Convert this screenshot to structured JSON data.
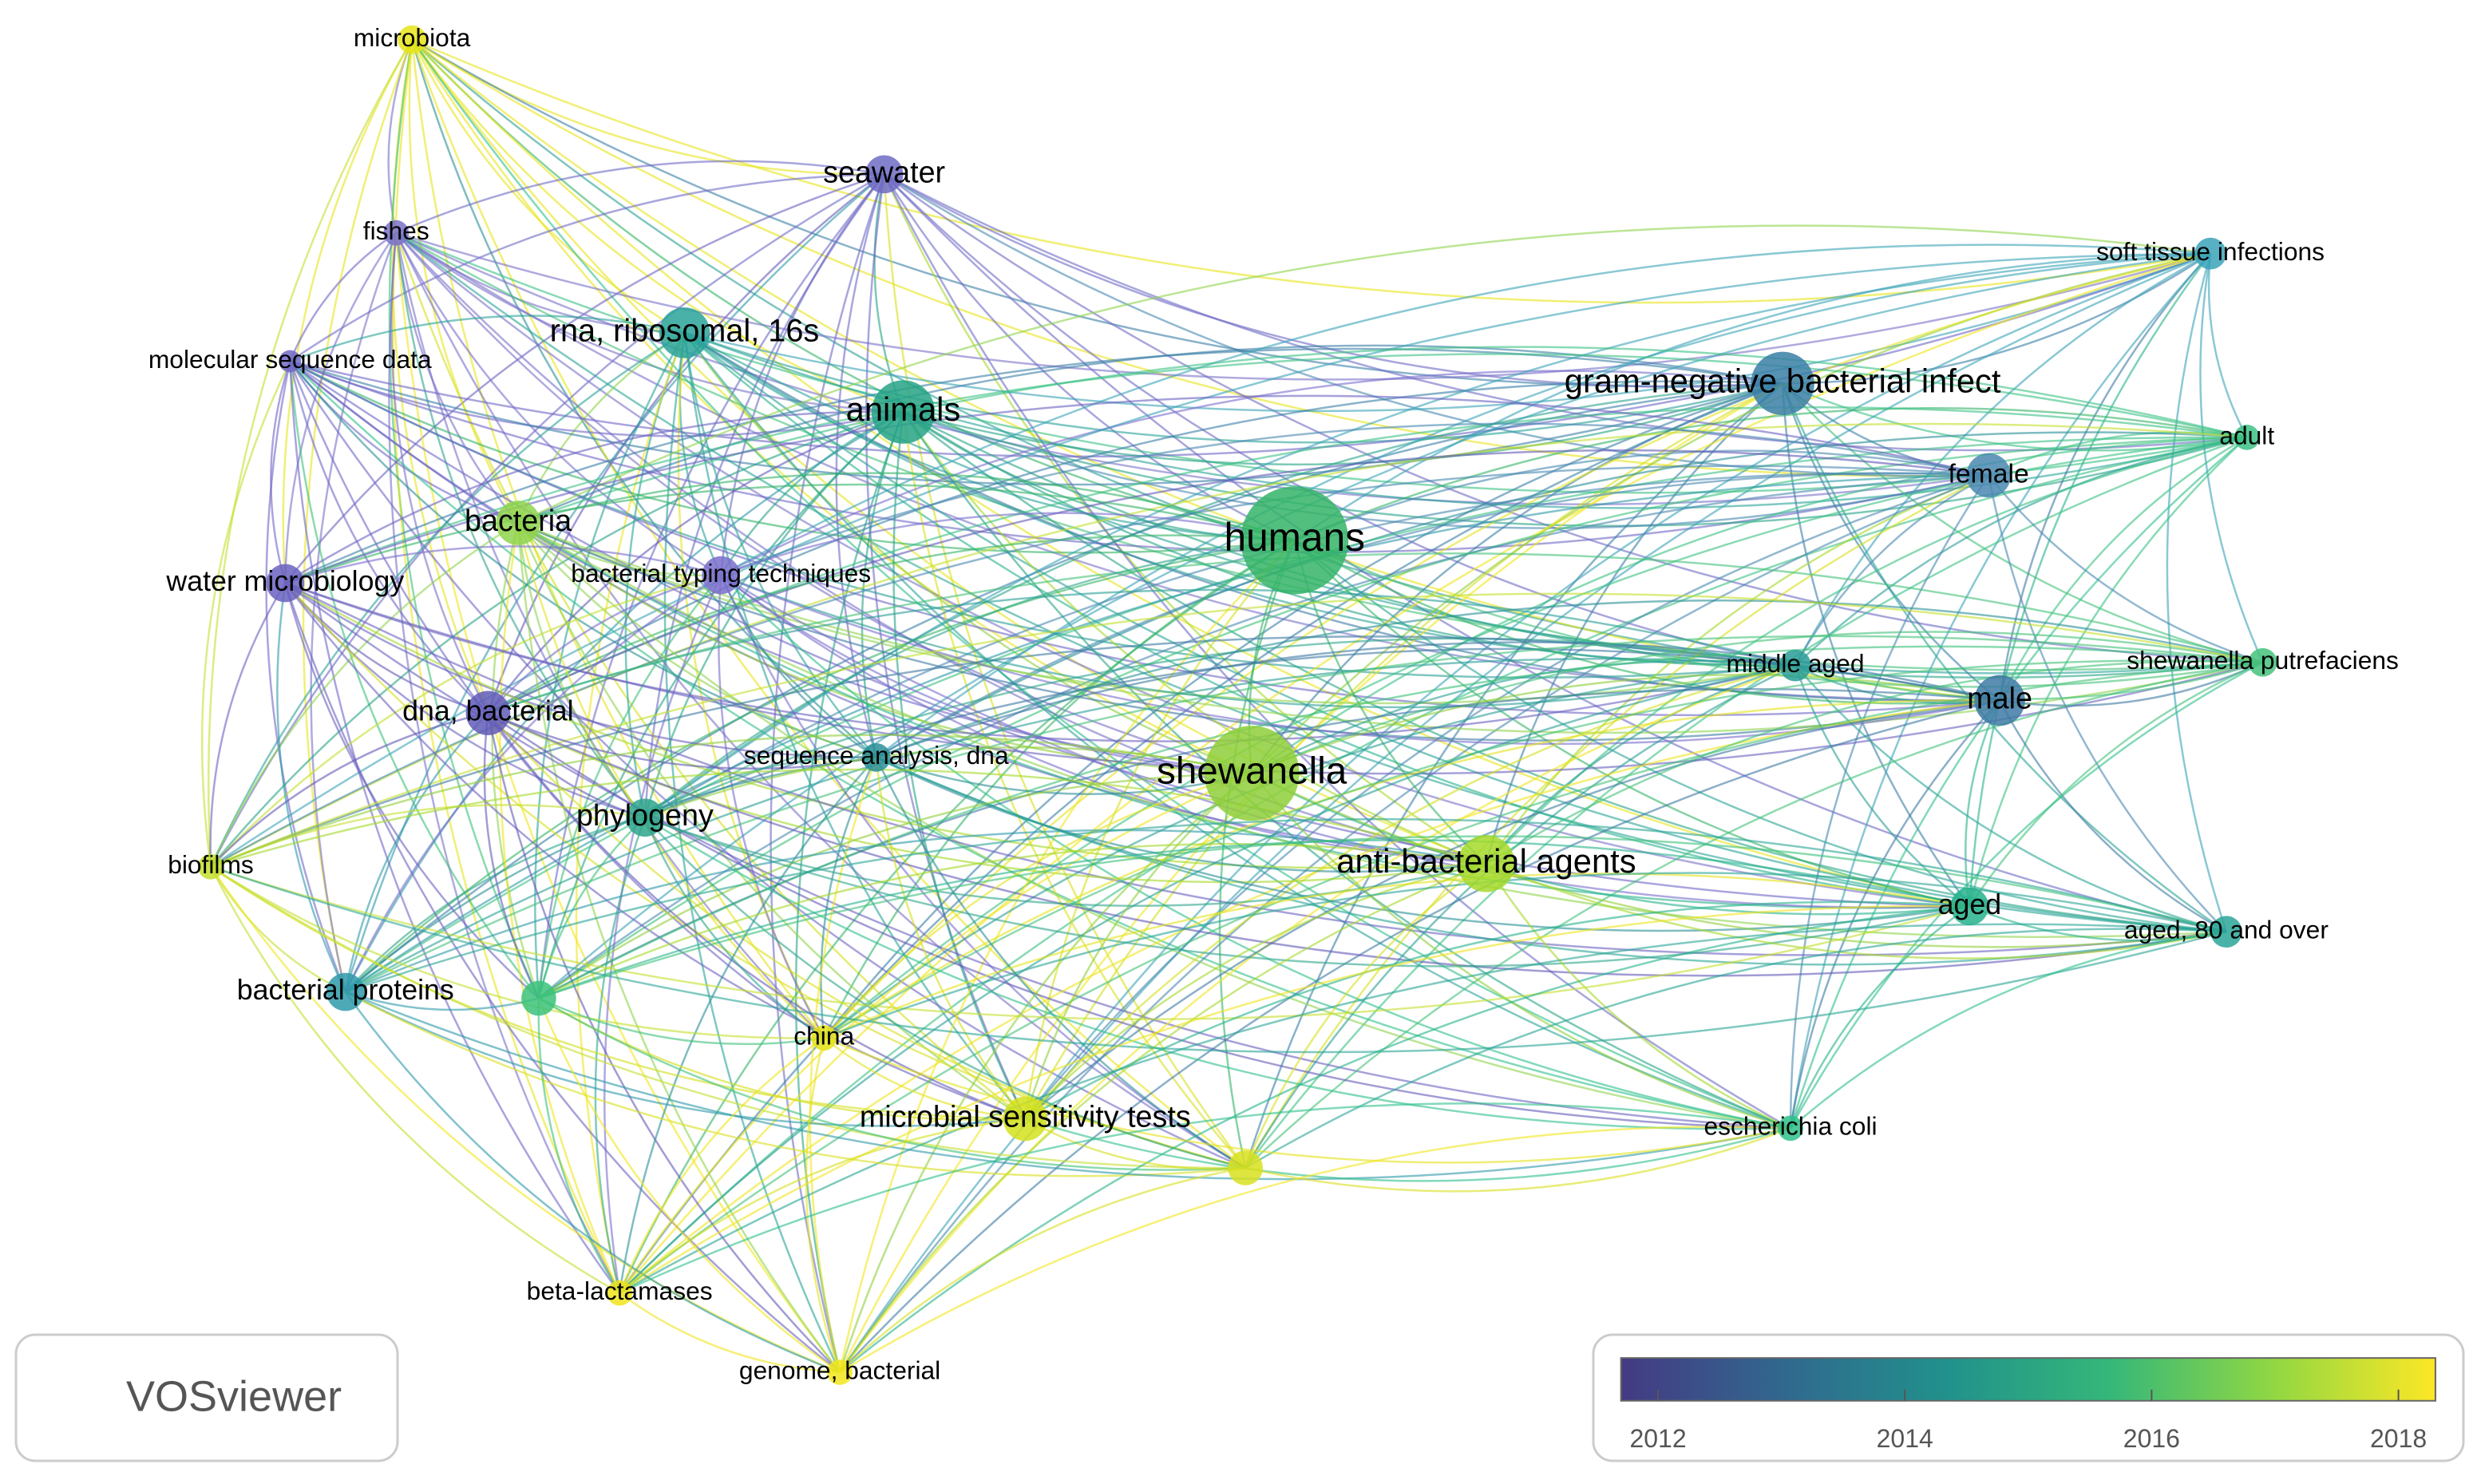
{
  "network": {
    "nodes": [
      {
        "label": "microbiota",
        "color": "#e8e419"
      },
      {
        "label": "seawater",
        "color": "#6e6bc4"
      },
      {
        "label": "fishes",
        "color": "#7a72c8"
      },
      {
        "label": "rna, ribosomal, 16s",
        "color": "#2aa39a"
      },
      {
        "label": "molecular sequence data",
        "color": "#7068c6"
      },
      {
        "label": "animals",
        "color": "#26a385"
      },
      {
        "label": "gram-negative bacterial infect",
        "color": "#3a7fa6"
      },
      {
        "label": "soft tissue infections",
        "color": "#3aa3b8"
      },
      {
        "label": "adult",
        "color": "#3bc184"
      },
      {
        "label": "female",
        "color": "#4a88b0"
      },
      {
        "label": "humans",
        "color": "#35b467"
      },
      {
        "label": "bacteria",
        "color": "#8fd44c"
      },
      {
        "label": "bacterial typing techniques",
        "color": "#7a6ecd"
      },
      {
        "label": "water microbiology",
        "color": "#6a62c0"
      },
      {
        "label": "middle aged",
        "color": "#2a9e96"
      },
      {
        "label": "male",
        "color": "#3e7aa4"
      },
      {
        "label": "shewanella putrefaciens",
        "color": "#44c27a"
      },
      {
        "label": "dna, bacterial",
        "color": "#625ab8"
      },
      {
        "label": "sequence analysis, dna",
        "color": "#2a8f96"
      },
      {
        "label": "shewanella",
        "color": "#8fcf3a"
      },
      {
        "label": "phylogeny",
        "color": "#2fa58c"
      },
      {
        "label": "anti-bacterial agents",
        "color": "#a5d92a"
      },
      {
        "label": "biofilms",
        "color": "#c4df2e"
      },
      {
        "label": "aged",
        "color": "#26b28c"
      },
      {
        "label": "aged, 80 and over",
        "color": "#2aa596"
      },
      {
        "label": "bacterial proteins",
        "color": "#2f9aaa"
      },
      {
        "label": null,
        "color": "#3cc27a"
      },
      {
        "label": "china",
        "color": "#e4e21a"
      },
      {
        "label": "microbial sensitivity tests",
        "color": "#d4e01c"
      },
      {
        "label": null,
        "color": "#d8e01e"
      },
      {
        "label": "escherichia coli",
        "color": "#2fbf8a"
      },
      {
        "label": "beta-lactamases",
        "color": "#f0e41c"
      },
      {
        "label": "genome, bacterial",
        "color": "#f2e61c"
      }
    ],
    "legend": {
      "range": [
        2011.7,
        2018.3
      ],
      "ticks": [
        2012,
        2014,
        2016,
        2018
      ],
      "colors": [
        "#443a83",
        "#31688e",
        "#21918c",
        "#35b779",
        "#90d743",
        "#fde725"
      ]
    },
    "logo": "VOSviewer"
  }
}
